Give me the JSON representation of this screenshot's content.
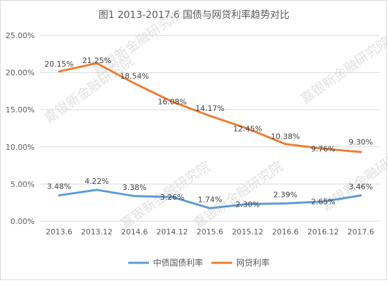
{
  "chart_data": {
    "type": "line",
    "title": "图1 2013-2017.6 国债与网贷利率趋势对比",
    "categories": [
      "2013.6",
      "2013.12",
      "2014.6",
      "2014.12",
      "2015.6",
      "2015.12",
      "2016.6",
      "2016.12",
      "2017.6"
    ],
    "series": [
      {
        "name": "中债国债利率",
        "color": "#5b9bd5",
        "values": [
          3.48,
          4.22,
          3.38,
          3.26,
          1.74,
          2.3,
          2.39,
          2.65,
          3.46
        ],
        "labels": [
          "3.48%",
          "4.22%",
          "3.38%",
          "3.26%",
          "1.74%",
          "2.30%",
          "2.39%",
          "2.65%",
          "3.46%"
        ]
      },
      {
        "name": "网贷利率",
        "color": "#ed7d31",
        "values": [
          20.15,
          21.25,
          18.54,
          16.08,
          14.17,
          12.45,
          10.38,
          9.76,
          9.3
        ],
        "labels": [
          "20.15%",
          "21.25%",
          "18.54%",
          "16.08%",
          "14.17%",
          "12.45%",
          "10.38%",
          "9.76%",
          "9.30%"
        ]
      }
    ],
    "ylim": [
      0,
      25
    ],
    "yticks": [
      "0.00%",
      "5.00%",
      "10.00%",
      "15.00%",
      "20.00%",
      "25.00%"
    ],
    "grid": true,
    "legend": "bottom"
  },
  "watermark": "嘉银新金融研究院"
}
